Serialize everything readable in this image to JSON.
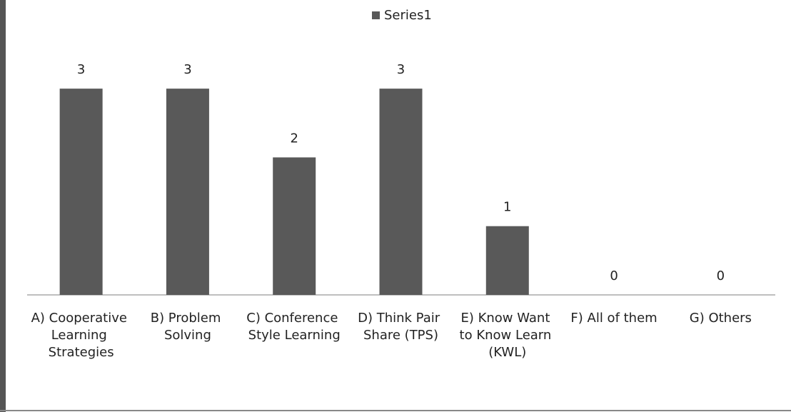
{
  "chart_data": {
    "type": "bar",
    "categories": [
      "A) Cooperative Learning Strategies",
      "B) Problem Solving",
      "C) Conference Style Learning",
      "D) Think Pair Share (TPS)",
      "E) Know Want to Know Learn (KWL)",
      "F) All of them",
      "G) Others"
    ],
    "series": [
      {
        "name": "Series1",
        "color": "#595959",
        "values": [
          3,
          3,
          2,
          3,
          1,
          0,
          0
        ]
      }
    ],
    "ylim": [
      0,
      3.5
    ],
    "legend": "top",
    "data_labels": true
  }
}
